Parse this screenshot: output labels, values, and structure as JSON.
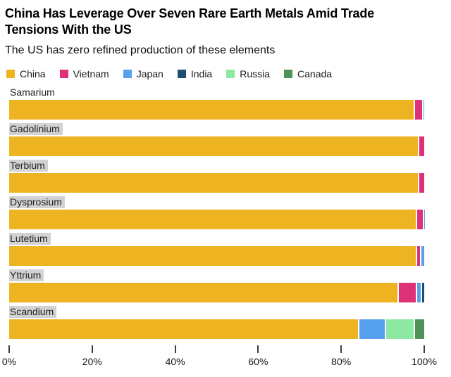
{
  "chart_data": {
    "type": "bar",
    "orientation": "horizontal-stacked",
    "title": "China Has Leverage Over Seven Rare Earth Metals Amid Trade Tensions With the US",
    "subtitle": "The US has zero refined production of these elements",
    "unit": "percent",
    "xlabel": "",
    "ylabel": "",
    "x_range": [
      0,
      100
    ],
    "legend_position": "top",
    "grid": false,
    "series": [
      {
        "name": "China",
        "color": "#EEB320"
      },
      {
        "name": "Vietnam",
        "color": "#DE3178"
      },
      {
        "name": "Japan",
        "color": "#57A0ED"
      },
      {
        "name": "India",
        "color": "#1F4D6E"
      },
      {
        "name": "Russia",
        "color": "#8DE8A2"
      },
      {
        "name": "Canada",
        "color": "#4E9159"
      }
    ],
    "rows": [
      {
        "label": "Samarium",
        "label_highlighted": false,
        "segments": [
          {
            "series": "China",
            "value": 97.5
          },
          {
            "series": "Vietnam",
            "value": 2.0
          },
          {
            "series": "Japan",
            "value": 0.5
          }
        ]
      },
      {
        "label": "Gadolinium",
        "label_highlighted": true,
        "segments": [
          {
            "series": "China",
            "value": 98.5
          },
          {
            "series": "Vietnam",
            "value": 1.5
          }
        ]
      },
      {
        "label": "Terbium",
        "label_highlighted": true,
        "segments": [
          {
            "series": "China",
            "value": 98.5
          },
          {
            "series": "Vietnam",
            "value": 1.5
          }
        ]
      },
      {
        "label": "Dysprosium",
        "label_highlighted": true,
        "segments": [
          {
            "series": "China",
            "value": 98.0
          },
          {
            "series": "Vietnam",
            "value": 1.6
          },
          {
            "series": "Japan",
            "value": 0.4
          }
        ]
      },
      {
        "label": "Lutetium",
        "label_highlighted": true,
        "segments": [
          {
            "series": "China",
            "value": 98.0
          },
          {
            "series": "Vietnam",
            "value": 1.0
          },
          {
            "series": "Japan",
            "value": 1.0
          }
        ]
      },
      {
        "label": "Yttrium",
        "label_highlighted": true,
        "segments": [
          {
            "series": "China",
            "value": 93.5
          },
          {
            "series": "Vietnam",
            "value": 4.5
          },
          {
            "series": "Japan",
            "value": 1.2
          },
          {
            "series": "India",
            "value": 0.8
          }
        ]
      },
      {
        "label": "Scandium",
        "label_highlighted": true,
        "segments": [
          {
            "series": "China",
            "value": 84.0
          },
          {
            "series": "Japan",
            "value": 6.5
          },
          {
            "series": "Russia",
            "value": 7.0
          },
          {
            "series": "Canada",
            "value": 2.5
          }
        ]
      }
    ],
    "x_axis": {
      "tick_labels": [
        "0%",
        "20%",
        "40%",
        "60%",
        "80%",
        "100%"
      ],
      "tick_values": [
        0,
        20,
        40,
        60,
        80,
        100
      ]
    },
    "styles": {
      "label_highlight_bg": "#D2D2D2",
      "axis_tick_color": "#3C3C3C",
      "background": "#FFFFFF"
    }
  }
}
